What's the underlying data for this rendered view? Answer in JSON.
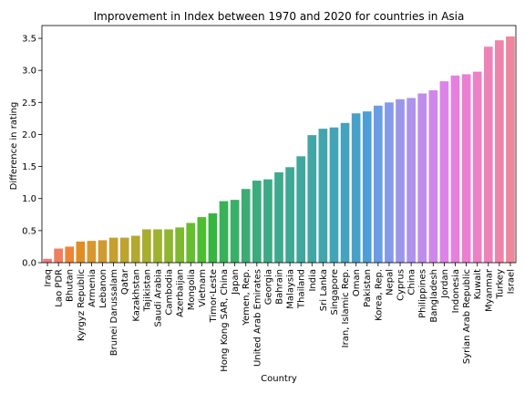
{
  "chart_data": {
    "type": "bar",
    "title": "Improvement in Index between 1970 and 2020 for countries in Asia",
    "xlabel": "Country",
    "ylabel": "Difference in rating",
    "ylim": [
      0,
      3.7
    ],
    "yticks": [
      0.0,
      0.5,
      1.0,
      1.5,
      2.0,
      2.5,
      3.0,
      3.5
    ],
    "grid": false,
    "categories": [
      "Iraq",
      "Lao PDR",
      "Bhutan",
      "Kyrgyz Republic",
      "Armenia",
      "Lebanon",
      "Brunei Darussalam",
      "Qatar",
      "Kazakhstan",
      "Tajikistan",
      "Saudi Arabia",
      "Cambodia",
      "Azerbaijan",
      "Mongolia",
      "Vietnam",
      "Timor-Leste",
      "Hong Kong SAR, China",
      "Japan",
      "Yemen, Rep.",
      "United Arab Emirates",
      "Georgia",
      "Bahrain",
      "Malaysia",
      "Thailand",
      "India",
      "Sri Lanka",
      "Singapore",
      "Iran, Islamic Rep.",
      "Oman",
      "Pakistan",
      "Korea, Rep.",
      "Nepal",
      "Cyprus",
      "China",
      "Philippines",
      "Bangladesh",
      "Jordan",
      "Indonesia",
      "Syrian Arab Republic",
      "Kuwait",
      "Myanmar",
      "Turkey",
      "Israel"
    ],
    "values": [
      0.06,
      0.22,
      0.25,
      0.33,
      0.34,
      0.35,
      0.39,
      0.39,
      0.42,
      0.52,
      0.52,
      0.52,
      0.55,
      0.62,
      0.71,
      0.77,
      0.96,
      0.98,
      1.15,
      1.28,
      1.3,
      1.41,
      1.49,
      1.66,
      1.99,
      2.09,
      2.11,
      2.18,
      2.33,
      2.36,
      2.45,
      2.5,
      2.55,
      2.57,
      2.64,
      2.69,
      2.83,
      2.92,
      2.94,
      2.98,
      3.37,
      3.47,
      3.53
    ],
    "colors": [
      "#f27a7c",
      "#f07e5f",
      "#ec8436",
      "#e08e24",
      "#d99730",
      "#cf9b30",
      "#c59f30",
      "#bda330",
      "#b3a830",
      "#a9ad2f",
      "#9eb22f",
      "#90b530",
      "#7eb930",
      "#66bd30",
      "#4cbd30",
      "#37b540",
      "#38b159",
      "#3aaf68",
      "#3bad74",
      "#3cab7e",
      "#3daa86",
      "#3ea98e",
      "#3fa895",
      "#40a79d",
      "#41a6a5",
      "#42a5ae",
      "#43a4b6",
      "#44a3bf",
      "#46a1c9",
      "#4c9fd6",
      "#6a9de3",
      "#8399ea",
      "#9b96ec",
      "#ae92ec",
      "#be8dec",
      "#ce88ea",
      "#dc83e8",
      "#e77fe0",
      "#eb7fd3",
      "#ec81c5",
      "#ed82b8",
      "#ee84aa",
      "#ef879c"
    ]
  }
}
